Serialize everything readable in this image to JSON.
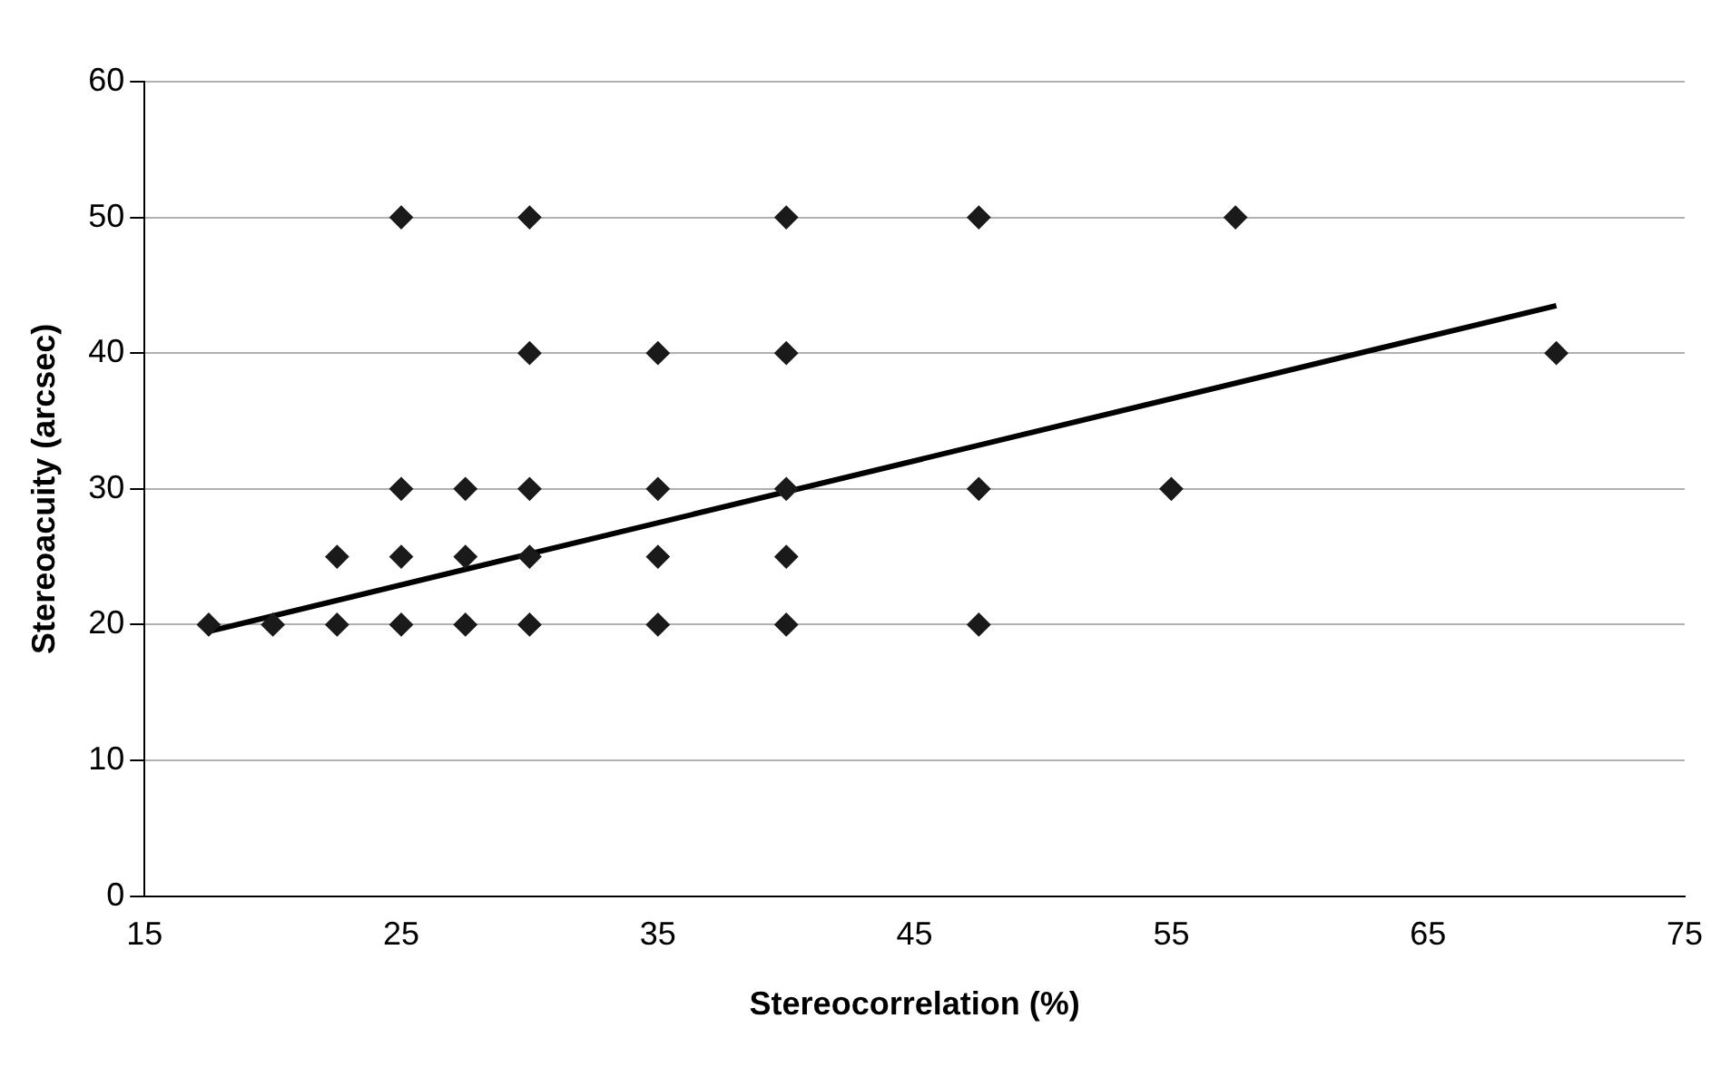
{
  "chart_data": {
    "type": "scatter",
    "xlabel": "Stereocorrelation (%)",
    "ylabel": "Stereoacuity (arcsec)",
    "xlim": [
      15,
      75
    ],
    "xticks": [
      15,
      25,
      35,
      45,
      55,
      65,
      75
    ],
    "ylim": [
      0,
      60
    ],
    "yticks": [
      0,
      10,
      20,
      30,
      40,
      50,
      60
    ],
    "grid": "y",
    "legend": false,
    "series": [
      {
        "type": "scatter",
        "marker": "diamond",
        "color": "#1a1a1a",
        "x": [
          17.5,
          20,
          22.5,
          22.5,
          25,
          25,
          25,
          25,
          27.5,
          27.5,
          27.5,
          30,
          30,
          30,
          30,
          30,
          35,
          35,
          35,
          35,
          40,
          40,
          40,
          40,
          40,
          47.5,
          47.5,
          47.5,
          55,
          57.5,
          70
        ],
        "values": [
          20,
          20,
          25,
          20,
          50,
          30,
          25,
          20,
          30,
          25,
          20,
          50,
          40,
          30,
          25,
          20,
          40,
          30,
          25,
          20,
          50,
          40,
          30,
          25,
          20,
          50,
          30,
          20,
          30,
          50,
          40
        ]
      },
      {
        "type": "line",
        "marker": "none",
        "color": "#000000",
        "x": [
          17.5,
          70
        ],
        "values": [
          19.5,
          43.5
        ]
      }
    ]
  }
}
